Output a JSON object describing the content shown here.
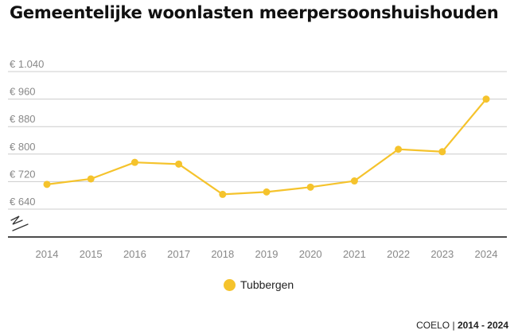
{
  "chart_data": {
    "type": "line",
    "title": "Gemeentelijke woonlasten meerpersoonshuishouden",
    "x": [
      "2014",
      "2015",
      "2016",
      "2017",
      "2018",
      "2019",
      "2020",
      "2021",
      "2022",
      "2023",
      "2024"
    ],
    "series": [
      {
        "name": "Tubbergen",
        "values": [
          712,
          728,
          776,
          771,
          683,
          690,
          704,
          722,
          814,
          807,
          960
        ],
        "color": "#F5C32C"
      }
    ],
    "ylim": [
      640,
      1040
    ],
    "yticks": [
      640,
      720,
      800,
      880,
      960,
      1040
    ],
    "ytick_labels": [
      "€ 640",
      "€ 720",
      "€ 800",
      "€ 880",
      "€ 960",
      "€ 1.040"
    ],
    "axis_break": true,
    "grid": "horizontal",
    "legend_position": "bottom-center"
  },
  "footer": {
    "source": "COELO",
    "separator": "|",
    "period": "2014 - 2024"
  }
}
